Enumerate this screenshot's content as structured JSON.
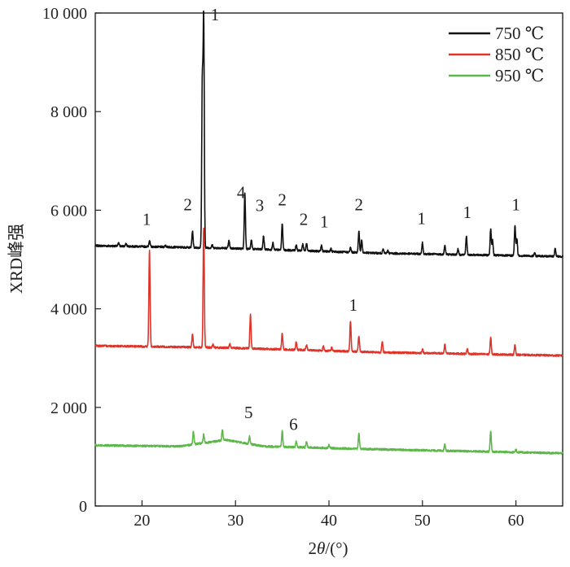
{
  "chart_data": {
    "type": "line",
    "title": "",
    "xlabel": "2θ/(°)",
    "xlabel_parts": {
      "prefix": "2",
      "italic": "θ",
      "suffix": "/(°)"
    },
    "ylabel": "XRD峰强",
    "xlim": [
      15,
      65
    ],
    "ylim": [
      0,
      10000
    ],
    "x_ticks": [
      20,
      30,
      40,
      50,
      60
    ],
    "x_tick_labels": [
      "20",
      "30",
      "40",
      "50",
      "60"
    ],
    "y_ticks": [
      0,
      2000,
      4000,
      6000,
      8000,
      10000
    ],
    "y_tick_labels": [
      "0",
      "2 000",
      "4 000",
      "6 000",
      "8 000",
      "10 000"
    ],
    "grid": false,
    "legend_position": "top-right",
    "series": [
      {
        "name": "750 ℃",
        "color": "#111111",
        "baseline": [
          [
            15,
            5280
          ],
          [
            29,
            5230
          ],
          [
            45,
            5130
          ],
          [
            65,
            5060
          ]
        ],
        "peaks": [
          [
            17.5,
            60
          ],
          [
            18.3,
            50
          ],
          [
            20.8,
            130
          ],
          [
            22.5,
            40
          ],
          [
            25.4,
            330
          ],
          [
            26.6,
            4600
          ],
          [
            26.45,
            3300
          ],
          [
            27.5,
            60
          ],
          [
            29.3,
            150
          ],
          [
            31.0,
            1130
          ],
          [
            31.7,
            180
          ],
          [
            33.0,
            270
          ],
          [
            34.0,
            140
          ],
          [
            35.0,
            530
          ],
          [
            36.5,
            120
          ],
          [
            37.2,
            140
          ],
          [
            37.6,
            160
          ],
          [
            39.2,
            120
          ],
          [
            40.2,
            60
          ],
          [
            42.3,
            90
          ],
          [
            43.2,
            430
          ],
          [
            43.5,
            250
          ],
          [
            45.8,
            80
          ],
          [
            46.3,
            60
          ],
          [
            50.0,
            230
          ],
          [
            52.4,
            180
          ],
          [
            53.8,
            110
          ],
          [
            54.7,
            380
          ],
          [
            57.3,
            540
          ],
          [
            57.5,
            300
          ],
          [
            59.9,
            610
          ],
          [
            60.1,
            350
          ],
          [
            62.0,
            60
          ],
          [
            64.2,
            160
          ]
        ]
      },
      {
        "name": "850 ℃",
        "color": "#e0342b",
        "baseline": [
          [
            15,
            3250
          ],
          [
            29,
            3210
          ],
          [
            45,
            3120
          ],
          [
            65,
            3050
          ]
        ],
        "peaks": [
          [
            20.8,
            1960
          ],
          [
            25.4,
            260
          ],
          [
            26.6,
            2430
          ],
          [
            27.6,
            60
          ],
          [
            29.4,
            80
          ],
          [
            31.6,
            680
          ],
          [
            35.0,
            320
          ],
          [
            36.5,
            170
          ],
          [
            37.6,
            110
          ],
          [
            39.4,
            90
          ],
          [
            40.3,
            70
          ],
          [
            42.3,
            620
          ],
          [
            43.2,
            320
          ],
          [
            45.7,
            210
          ],
          [
            50.0,
            80
          ],
          [
            52.4,
            180
          ],
          [
            54.8,
            100
          ],
          [
            57.3,
            340
          ],
          [
            59.9,
            200
          ]
        ]
      },
      {
        "name": "950 ℃",
        "color": "#5db84a",
        "baseline": [
          [
            15,
            1230
          ],
          [
            24,
            1210
          ],
          [
            29,
            1340
          ],
          [
            33,
            1210
          ],
          [
            45,
            1150
          ],
          [
            65,
            1070
          ]
        ],
        "peaks": [
          [
            25.5,
            270
          ],
          [
            26.6,
            180
          ],
          [
            28.6,
            220
          ],
          [
            31.5,
            160
          ],
          [
            35.0,
            320
          ],
          [
            36.5,
            120
          ],
          [
            37.6,
            120
          ],
          [
            40.0,
            60
          ],
          [
            43.2,
            320
          ],
          [
            52.4,
            140
          ],
          [
            57.3,
            420
          ],
          [
            60.0,
            60
          ]
        ]
      }
    ],
    "annotations": [
      {
        "text": "1",
        "x": 27.8,
        "y": 9850
      },
      {
        "text": "2",
        "x": 24.9,
        "y": 6000
      },
      {
        "text": "1",
        "x": 20.5,
        "y": 5700
      },
      {
        "text": "4",
        "x": 30.6,
        "y": 6250
      },
      {
        "text": "3",
        "x": 32.6,
        "y": 5980
      },
      {
        "text": "2",
        "x": 35.0,
        "y": 6100
      },
      {
        "text": "2",
        "x": 37.3,
        "y": 5700
      },
      {
        "text": "1",
        "x": 39.5,
        "y": 5650
      },
      {
        "text": "2",
        "x": 43.2,
        "y": 6000
      },
      {
        "text": "1",
        "x": 49.9,
        "y": 5720
      },
      {
        "text": "1",
        "x": 54.8,
        "y": 5840
      },
      {
        "text": "1",
        "x": 60.0,
        "y": 6000
      },
      {
        "text": "1",
        "x": 42.6,
        "y": 3960
      },
      {
        "text": "5",
        "x": 31.4,
        "y": 1780
      },
      {
        "text": "6",
        "x": 36.2,
        "y": 1540
      }
    ]
  }
}
